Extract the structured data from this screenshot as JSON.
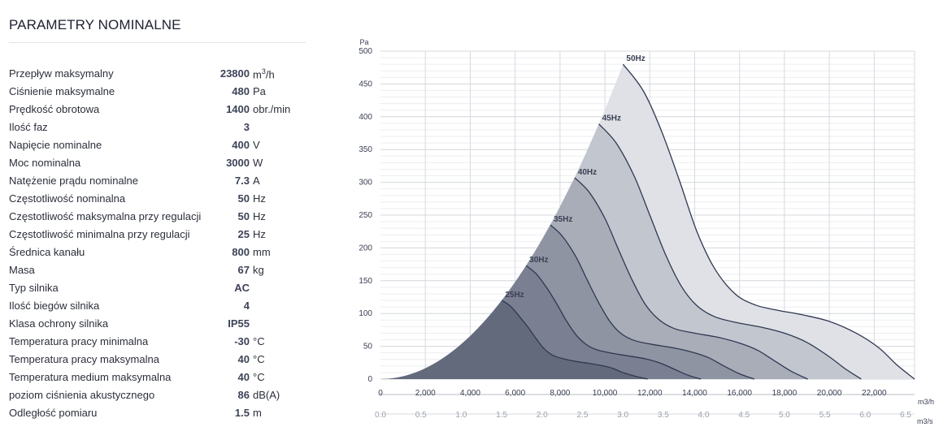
{
  "section_title": "PARAMETRY NOMINALNE",
  "params": [
    {
      "label": "Przepływ maksymalny",
      "value": "23800",
      "unit": "m",
      "unit_sup": "3",
      "unit_tail": "/h"
    },
    {
      "label": "Ciśnienie maksymalne",
      "value": "480",
      "unit": "Pa"
    },
    {
      "label": "Prędkość obrotowa",
      "value": "1400",
      "unit": "obr./min"
    },
    {
      "label": "Ilość faz",
      "value": "3",
      "unit": ""
    },
    {
      "label": "Napięcie nominalne",
      "value": "400",
      "unit": "V"
    },
    {
      "label": "Moc nominalna",
      "value": "3000",
      "unit": "W"
    },
    {
      "label": "Natężenie prądu nominalne",
      "value": "7.3",
      "unit": "A"
    },
    {
      "label": "Częstotliwość nominalna",
      "value": "50",
      "unit": "Hz"
    },
    {
      "label": "Częstotliwość maksymalna przy regulacji",
      "value": "50",
      "unit": "Hz"
    },
    {
      "label": "Częstotliwość minimalna przy regulacji",
      "value": "25",
      "unit": "Hz"
    },
    {
      "label": "Średnica kanału",
      "value": "800",
      "unit": "mm"
    },
    {
      "label": "Masa",
      "value": "67",
      "unit": "kg"
    },
    {
      "label": "Typ silnika",
      "value": "AC",
      "unit": ""
    },
    {
      "label": "Ilość biegów silnika",
      "value": "4",
      "unit": ""
    },
    {
      "label": "Klasa ochrony silnika",
      "value": "IP55",
      "unit": ""
    },
    {
      "label": "Temperatura pracy minimalna",
      "value": "-30",
      "unit": "°C"
    },
    {
      "label": "Temperatura pracy maksymalna",
      "value": "40",
      "unit": "°C"
    },
    {
      "label": "Temperatura medium maksymalna",
      "value": "40",
      "unit": "°C"
    },
    {
      "label": "poziom ciśnienia akustycznego",
      "value": "86",
      "unit": "dB(A)"
    },
    {
      "label": "Odległość pomiaru",
      "value": "1.5",
      "unit": "m"
    }
  ],
  "chart_data": {
    "type": "area",
    "ylabel": "Pa",
    "xlabel": "m3/h",
    "x2label": "m3/s",
    "xlim": [
      0,
      23800
    ],
    "ylim": [
      0,
      500
    ],
    "grid": true,
    "x_ticks": [
      "0",
      "2,000",
      "4,000",
      "6,000",
      "8,000",
      "10,000",
      "12,000",
      "14,000",
      "16,000",
      "18,000",
      "20,000",
      "22,000"
    ],
    "x2_ticks": [
      "0.0",
      "0.5",
      "1.0",
      "1.5",
      "2.0",
      "2.5",
      "3.0",
      "3.5",
      "4.0",
      "4.5",
      "5.0",
      "5.5",
      "6.0",
      "6.5"
    ],
    "y_ticks": [
      "0",
      "50",
      "100",
      "150",
      "200",
      "250",
      "300",
      "350",
      "400",
      "450",
      "500"
    ],
    "series": [
      {
        "name": "50Hz",
        "color": "#dfe1e6",
        "points": [
          [
            10810,
            480
          ],
          [
            11700,
            440
          ],
          [
            12500,
            380
          ],
          [
            13300,
            305
          ],
          [
            14100,
            225
          ],
          [
            14900,
            168
          ],
          [
            15800,
            130
          ],
          [
            16700,
            113
          ],
          [
            17700,
            105
          ],
          [
            18800,
            98
          ],
          [
            20000,
            88
          ],
          [
            21200,
            70
          ],
          [
            22200,
            48
          ],
          [
            23000,
            22
          ],
          [
            23800,
            0
          ]
        ]
      },
      {
        "name": "45Hz",
        "color": "#c2c6ce",
        "points": [
          [
            9730,
            389
          ],
          [
            10500,
            360
          ],
          [
            11300,
            310
          ],
          [
            12000,
            250
          ],
          [
            12700,
            190
          ],
          [
            13400,
            142
          ],
          [
            14100,
            112
          ],
          [
            14900,
            95
          ],
          [
            15900,
            86
          ],
          [
            17000,
            79
          ],
          [
            18000,
            70
          ],
          [
            19000,
            56
          ],
          [
            20000,
            34
          ],
          [
            20700,
            16
          ],
          [
            21420,
            0
          ]
        ]
      },
      {
        "name": "40Hz",
        "color": "#a8adb8",
        "points": [
          [
            8650,
            307
          ],
          [
            9300,
            285
          ],
          [
            10000,
            245
          ],
          [
            10600,
            198
          ],
          [
            11200,
            152
          ],
          [
            11800,
            114
          ],
          [
            12400,
            91
          ],
          [
            13100,
            77
          ],
          [
            14000,
            70
          ],
          [
            15000,
            64
          ],
          [
            15900,
            56
          ],
          [
            16800,
            44
          ],
          [
            17600,
            27
          ],
          [
            18300,
            12
          ],
          [
            19040,
            0
          ]
        ]
      },
      {
        "name": "35Hz",
        "color": "#8f94a2",
        "points": [
          [
            7570,
            235
          ],
          [
            8100,
            218
          ],
          [
            8700,
            187
          ],
          [
            9200,
            152
          ],
          [
            9700,
            118
          ],
          [
            10200,
            89
          ],
          [
            10700,
            70
          ],
          [
            11300,
            59
          ],
          [
            12100,
            53
          ],
          [
            13000,
            48
          ],
          [
            13800,
            42
          ],
          [
            14600,
            33
          ],
          [
            15300,
            20
          ],
          [
            16000,
            8
          ],
          [
            16660,
            0
          ]
        ]
      },
      {
        "name": "30Hz",
        "color": "#7a8091",
        "points": [
          [
            6490,
            173
          ],
          [
            6950,
            160
          ],
          [
            7450,
            137
          ],
          [
            7900,
            112
          ],
          [
            8300,
            88
          ],
          [
            8750,
            66
          ],
          [
            9200,
            52
          ],
          [
            9700,
            44
          ],
          [
            10400,
            39
          ],
          [
            11100,
            35
          ],
          [
            11800,
            31
          ],
          [
            12500,
            24
          ],
          [
            13100,
            15
          ],
          [
            13700,
            6
          ],
          [
            14280,
            0
          ]
        ]
      },
      {
        "name": "25Hz",
        "color": "#636a7c",
        "points": [
          [
            5410,
            120
          ],
          [
            5800,
            111
          ],
          [
            6200,
            95
          ],
          [
            6600,
            78
          ],
          [
            6950,
            61
          ],
          [
            7300,
            46
          ],
          [
            7700,
            36
          ],
          [
            8150,
            31
          ],
          [
            8700,
            27
          ],
          [
            9300,
            24
          ],
          [
            9800,
            21
          ],
          [
            10300,
            17
          ],
          [
            10800,
            10
          ],
          [
            11400,
            4
          ],
          [
            11900,
            0
          ]
        ]
      }
    ]
  }
}
